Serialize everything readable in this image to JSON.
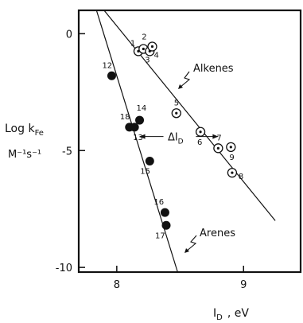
{
  "chart_data": {
    "type": "scatter",
    "title": "",
    "ylabel_line1": "Log k",
    "ylabel_sub": "Fe",
    "ylabel_line2": "M⁻¹s⁻¹",
    "xlabel": "I",
    "xlabel_sub": "D",
    "xlabel_unit": ", eV",
    "xlim": [
      7.7,
      9.45
    ],
    "ylim": [
      -10.2,
      1.0
    ],
    "x_ticks": [
      8,
      9
    ],
    "x_tick_labels": [
      "8",
      "9"
    ],
    "y_ticks": [
      0,
      -5,
      -10
    ],
    "y_tick_labels": [
      "0",
      "-5",
      "-10"
    ],
    "grid": false,
    "series": [
      {
        "name": "Alkenes",
        "marker": "circled-dot",
        "points": [
          {
            "label": "1",
            "x": 8.17,
            "y": -0.75
          },
          {
            "label": "2",
            "x": 8.21,
            "y": -0.65
          },
          {
            "label": "3",
            "x": 8.26,
            "y": -0.75
          },
          {
            "label": "4",
            "x": 8.28,
            "y": -0.55
          },
          {
            "label": "5",
            "x": 8.47,
            "y": -3.4
          },
          {
            "label": "6",
            "x": 8.66,
            "y": -4.2
          },
          {
            "label": "7",
            "x": 8.8,
            "y": -4.9
          },
          {
            "label": "9",
            "x": 8.9,
            "y": -4.85
          },
          {
            "label": "8",
            "x": 8.91,
            "y": -5.95
          }
        ],
        "fit_line": [
          [
            7.9,
            1.05
          ],
          [
            9.25,
            -8.0
          ]
        ]
      },
      {
        "name": "Arenes",
        "marker": "filled-circle",
        "points": [
          {
            "label": "12",
            "x": 7.96,
            "y": -1.8
          },
          {
            "label": "18",
            "x": 8.1,
            "y": -4.0
          },
          {
            "label": "13",
            "x": 8.14,
            "y": -4.0
          },
          {
            "label": "14",
            "x": 8.18,
            "y": -3.7
          },
          {
            "label": "15",
            "x": 8.26,
            "y": -5.45
          },
          {
            "label": "16",
            "x": 8.38,
            "y": -7.65
          },
          {
            "label": "17",
            "x": 8.39,
            "y": -8.2
          }
        ],
        "fit_line": [
          [
            7.84,
            1.05
          ],
          [
            8.48,
            -10.2
          ]
        ]
      }
    ],
    "annotations": {
      "alkenes_label": "Alkenes",
      "arenes_label": "Arenes",
      "delta_label": "ΔI",
      "delta_sub": "D",
      "delta_y": -4.4,
      "delta_x_from": 8.18,
      "delta_x_to": 8.8
    }
  }
}
